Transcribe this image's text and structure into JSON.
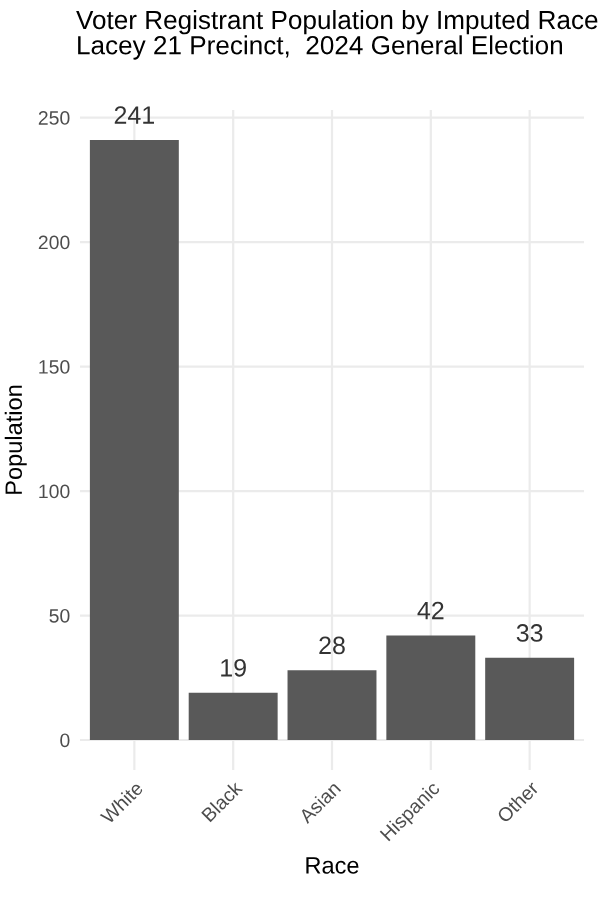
{
  "chart_data": {
    "type": "bar",
    "title": "Voter Registrant Population by Imputed Race\nLacey 21 Precinct,  2024 General Election",
    "xlabel": "Race",
    "ylabel": "Population",
    "categories": [
      "White",
      "Black",
      "Asian",
      "Hispanic",
      "Other"
    ],
    "values": [
      241,
      19,
      28,
      42,
      33
    ],
    "color": "#595959",
    "ylim": [
      -12.05,
      253.05
    ],
    "yticks": [
      0,
      50,
      100,
      150,
      200,
      250
    ],
    "grid": true,
    "data_labels": true
  }
}
